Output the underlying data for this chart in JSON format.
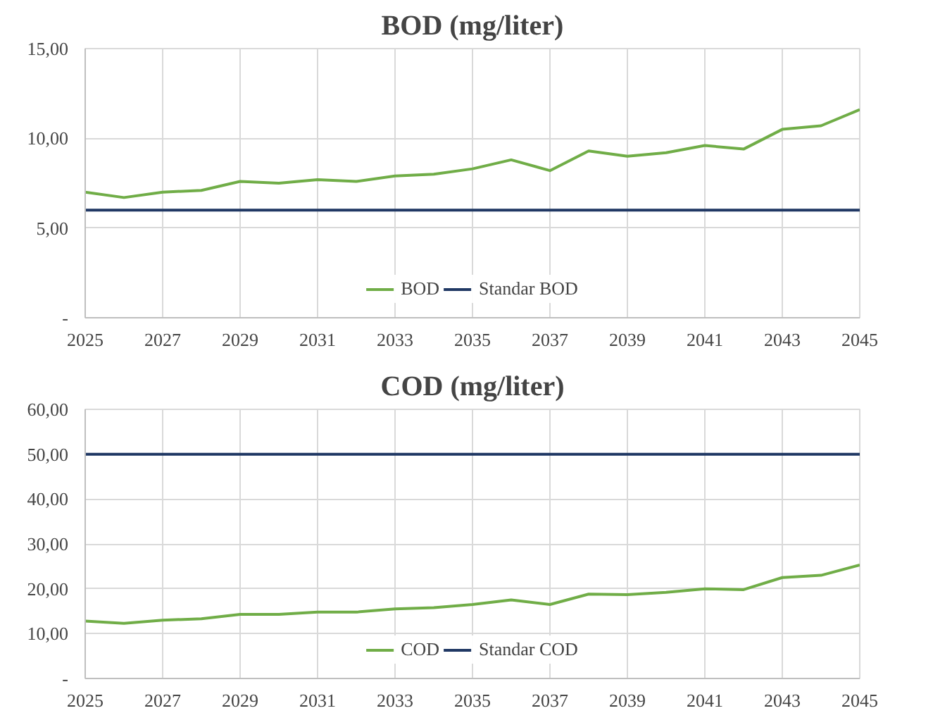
{
  "chart_data": [
    {
      "type": "line",
      "title": "BOD (mg/liter)",
      "x": [
        2025,
        2026,
        2027,
        2028,
        2029,
        2030,
        2031,
        2032,
        2033,
        2034,
        2035,
        2036,
        2037,
        2038,
        2039,
        2040,
        2041,
        2042,
        2043,
        2044,
        2045
      ],
      "series": [
        {
          "name": "BOD",
          "color": "#70ad47",
          "values": [
            7.0,
            6.7,
            7.0,
            7.1,
            7.6,
            7.5,
            7.7,
            7.6,
            7.9,
            8.0,
            8.3,
            8.8,
            8.2,
            9.3,
            9.0,
            9.2,
            9.6,
            9.4,
            10.5,
            10.7,
            11.6
          ]
        },
        {
          "name": "Standar BOD",
          "color": "#203864",
          "values": [
            6,
            6,
            6,
            6,
            6,
            6,
            6,
            6,
            6,
            6,
            6,
            6,
            6,
            6,
            6,
            6,
            6,
            6,
            6,
            6,
            6
          ]
        }
      ],
      "xlim": [
        2025,
        2045
      ],
      "xticks": [
        2025,
        2027,
        2029,
        2031,
        2033,
        2035,
        2037,
        2039,
        2041,
        2043,
        2045
      ],
      "ylim": [
        0,
        15
      ],
      "yticks": [
        {
          "value": 0,
          "label": "-"
        },
        {
          "value": 5,
          "label": "5,00"
        },
        {
          "value": 10,
          "label": "10,00"
        },
        {
          "value": 15,
          "label": "15,00"
        }
      ],
      "grid": true,
      "legend": "bottom"
    },
    {
      "type": "line",
      "title": "COD (mg/liter)",
      "x": [
        2025,
        2026,
        2027,
        2028,
        2029,
        2030,
        2031,
        2032,
        2033,
        2034,
        2035,
        2036,
        2037,
        2038,
        2039,
        2040,
        2041,
        2042,
        2043,
        2044,
        2045
      ],
      "series": [
        {
          "name": "COD",
          "color": "#70ad47",
          "values": [
            12.8,
            12.3,
            13.0,
            13.3,
            14.3,
            14.3,
            14.8,
            14.8,
            15.5,
            15.8,
            16.5,
            17.5,
            16.5,
            18.8,
            18.7,
            19.2,
            20.0,
            19.8,
            22.5,
            23.0,
            25.3
          ]
        },
        {
          "name": "Standar COD",
          "color": "#203864",
          "values": [
            50,
            50,
            50,
            50,
            50,
            50,
            50,
            50,
            50,
            50,
            50,
            50,
            50,
            50,
            50,
            50,
            50,
            50,
            50,
            50,
            50
          ]
        }
      ],
      "xlim": [
        2025,
        2045
      ],
      "xticks": [
        2025,
        2027,
        2029,
        2031,
        2033,
        2035,
        2037,
        2039,
        2041,
        2043,
        2045
      ],
      "ylim": [
        0,
        60
      ],
      "yticks": [
        {
          "value": 0,
          "label": "-"
        },
        {
          "value": 10,
          "label": "10,00"
        },
        {
          "value": 20,
          "label": "20,00"
        },
        {
          "value": 30,
          "label": "30,00"
        },
        {
          "value": 40,
          "label": "40,00"
        },
        {
          "value": 50,
          "label": "50,00"
        },
        {
          "value": 60,
          "label": "60,00"
        }
      ],
      "grid": true,
      "legend": "bottom"
    }
  ]
}
